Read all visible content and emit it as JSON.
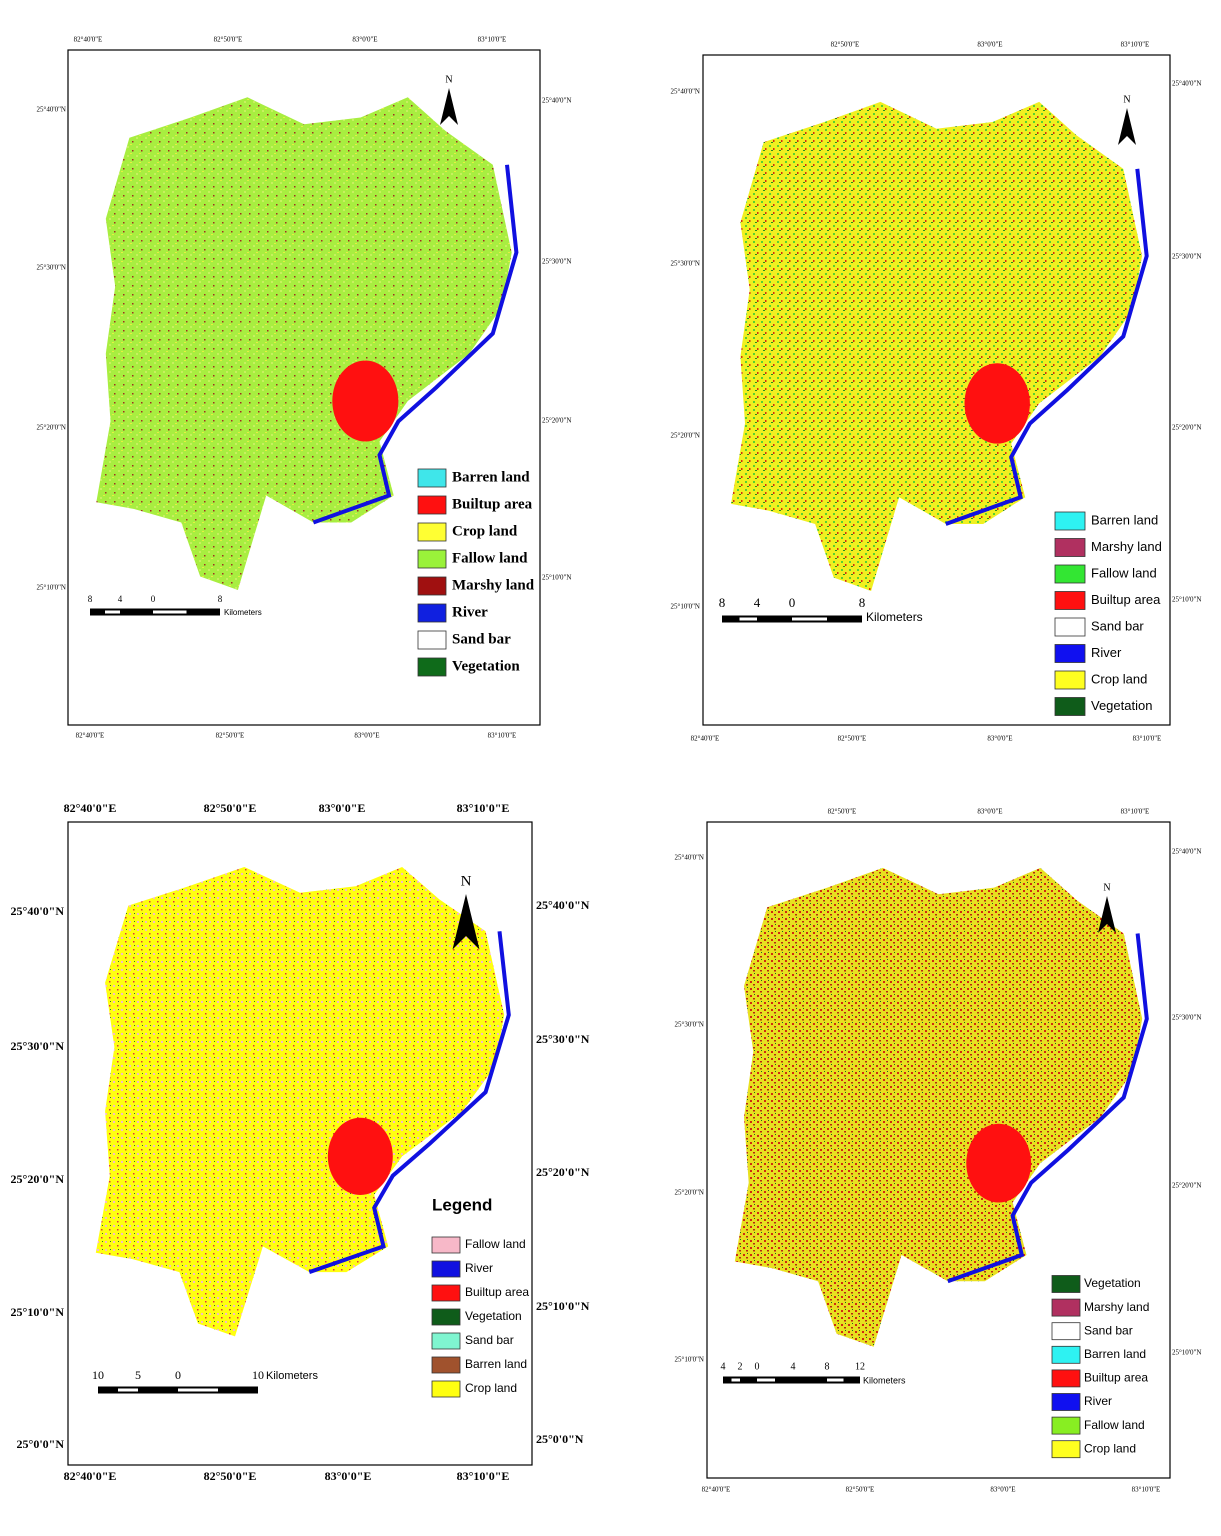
{
  "maps": [
    {
      "top_labels": [
        "82°40'0\"E",
        "82°50'0\"E",
        "83°0'0\"E",
        "83°10'0\"E"
      ],
      "bottom_labels": [
        "82°40'0\"E",
        "82°50'0\"E",
        "83°0'0\"E",
        "83°10'0\"E"
      ],
      "left_labels": [
        "25°40'0\"N",
        "25°30'0\"N",
        "25°20'0\"N",
        "25°10'0\"N"
      ],
      "right_labels": [
        "25°40'0\"N",
        "25°30'0\"N",
        "25°20'0\"N",
        "25°10'0\"N"
      ],
      "north": "N",
      "scale_labels": [
        "8",
        "4",
        "0",
        "8"
      ],
      "scale_unit": "Kilometers",
      "legend": [
        {
          "label": "Barren land",
          "color": "#3fe6ea"
        },
        {
          "label": "Builtup area",
          "color": "#ff1010"
        },
        {
          "label": "Crop land",
          "color": "#ffff33"
        },
        {
          "label": "Fallow land",
          "color": "#9af23a"
        },
        {
          "label": "Marshy land",
          "color": "#a01010"
        },
        {
          "label": "River",
          "color": "#1020e0"
        },
        {
          "label": "Sand bar",
          "color": "#ffffff"
        },
        {
          "label": "Vegetation",
          "color": "#0f6b1a"
        }
      ]
    },
    {
      "top_labels": [
        "82°50'0\"E",
        "83°0'0\"E",
        "83°10'0\"E"
      ],
      "bottom_labels": [
        "82°40'0\"E",
        "82°50'0\"E",
        "83°0'0\"E",
        "83°10'0\"E"
      ],
      "left_labels": [
        "25°40'0\"N",
        "25°30'0\"N",
        "25°20'0\"N",
        "25°10'0\"N"
      ],
      "right_labels": [
        "25°40'0\"N",
        "25°30'0\"N",
        "25°20'0\"N",
        "25°10'0\"N"
      ],
      "north": "N",
      "scale_labels": [
        "8",
        "4",
        "0",
        "8"
      ],
      "scale_unit": "Kilometers",
      "legend": [
        {
          "label": "Barren land",
          "color": "#2ef2f2"
        },
        {
          "label": "Marshy land",
          "color": "#b03060"
        },
        {
          "label": "Fallow land",
          "color": "#33e633"
        },
        {
          "label": "Builtup area",
          "color": "#ff1010"
        },
        {
          "label": "Sand bar",
          "color": "#ffffff"
        },
        {
          "label": "River",
          "color": "#1010f0"
        },
        {
          "label": "Crop land",
          "color": "#ffff20"
        },
        {
          "label": "Vegetation",
          "color": "#0f5c1a"
        }
      ]
    },
    {
      "top_labels": [
        "82°40'0\"E",
        "82°50'0\"E",
        "83°0'0\"E",
        "83°10'0\"E"
      ],
      "bottom_labels": [
        "82°40'0\"E",
        "82°50'0\"E",
        "83°0'0\"E",
        "83°10'0\"E"
      ],
      "left_labels": [
        "25°40'0\"N",
        "25°30'0\"N",
        "25°20'0\"N",
        "25°10'0\"N",
        "25°0'0\"N"
      ],
      "right_labels": [
        "25°40'0\"N",
        "25°30'0\"N",
        "25°20'0\"N",
        "25°10'0\"N",
        "25°0'0\"N"
      ],
      "north": "N",
      "scale_labels": [
        "10",
        "5",
        "0",
        "10"
      ],
      "scale_unit": "Kilometers",
      "legend_title": "Legend",
      "legend": [
        {
          "label": "Fallow land",
          "color": "#f7b8c8"
        },
        {
          "label": "River",
          "color": "#1010e0"
        },
        {
          "label": "Builtup area",
          "color": "#ff1010"
        },
        {
          "label": "Vegetation",
          "color": "#0f5c1a"
        },
        {
          "label": "Sand bar",
          "color": "#7ff5d0"
        },
        {
          "label": "Barren land",
          "color": "#a0522d"
        },
        {
          "label": "Crop land",
          "color": "#ffff10"
        }
      ]
    },
    {
      "top_labels": [
        "82°50'0\"E",
        "83°0'0\"E",
        "83°10'0\"E"
      ],
      "bottom_labels": [
        "82°40'0\"E",
        "82°50'0\"E",
        "83°0'0\"E",
        "83°10'0\"E"
      ],
      "left_labels": [
        "25°40'0\"N",
        "25°30'0\"N",
        "25°20'0\"N",
        "25°10'0\"N"
      ],
      "right_labels": [
        "25°40'0\"N",
        "25°30'0\"N",
        "25°20'0\"N",
        "25°10'0\"N"
      ],
      "north": "N",
      "scale_labels": [
        "4",
        "2",
        "0",
        "4",
        "8",
        "12"
      ],
      "scale_unit": "Kilometers",
      "legend": [
        {
          "label": "Vegetation",
          "color": "#0f5c1a"
        },
        {
          "label": "Marshy land",
          "color": "#b03060"
        },
        {
          "label": "Sand bar",
          "color": "#ffffff"
        },
        {
          "label": "Barren land",
          "color": "#2ef2f2"
        },
        {
          "label": "Builtup area",
          "color": "#ff1010"
        },
        {
          "label": "River",
          "color": "#1010f0"
        },
        {
          "label": "Fallow land",
          "color": "#88ee22"
        },
        {
          "label": "Crop land",
          "color": "#ffff20"
        }
      ]
    }
  ]
}
